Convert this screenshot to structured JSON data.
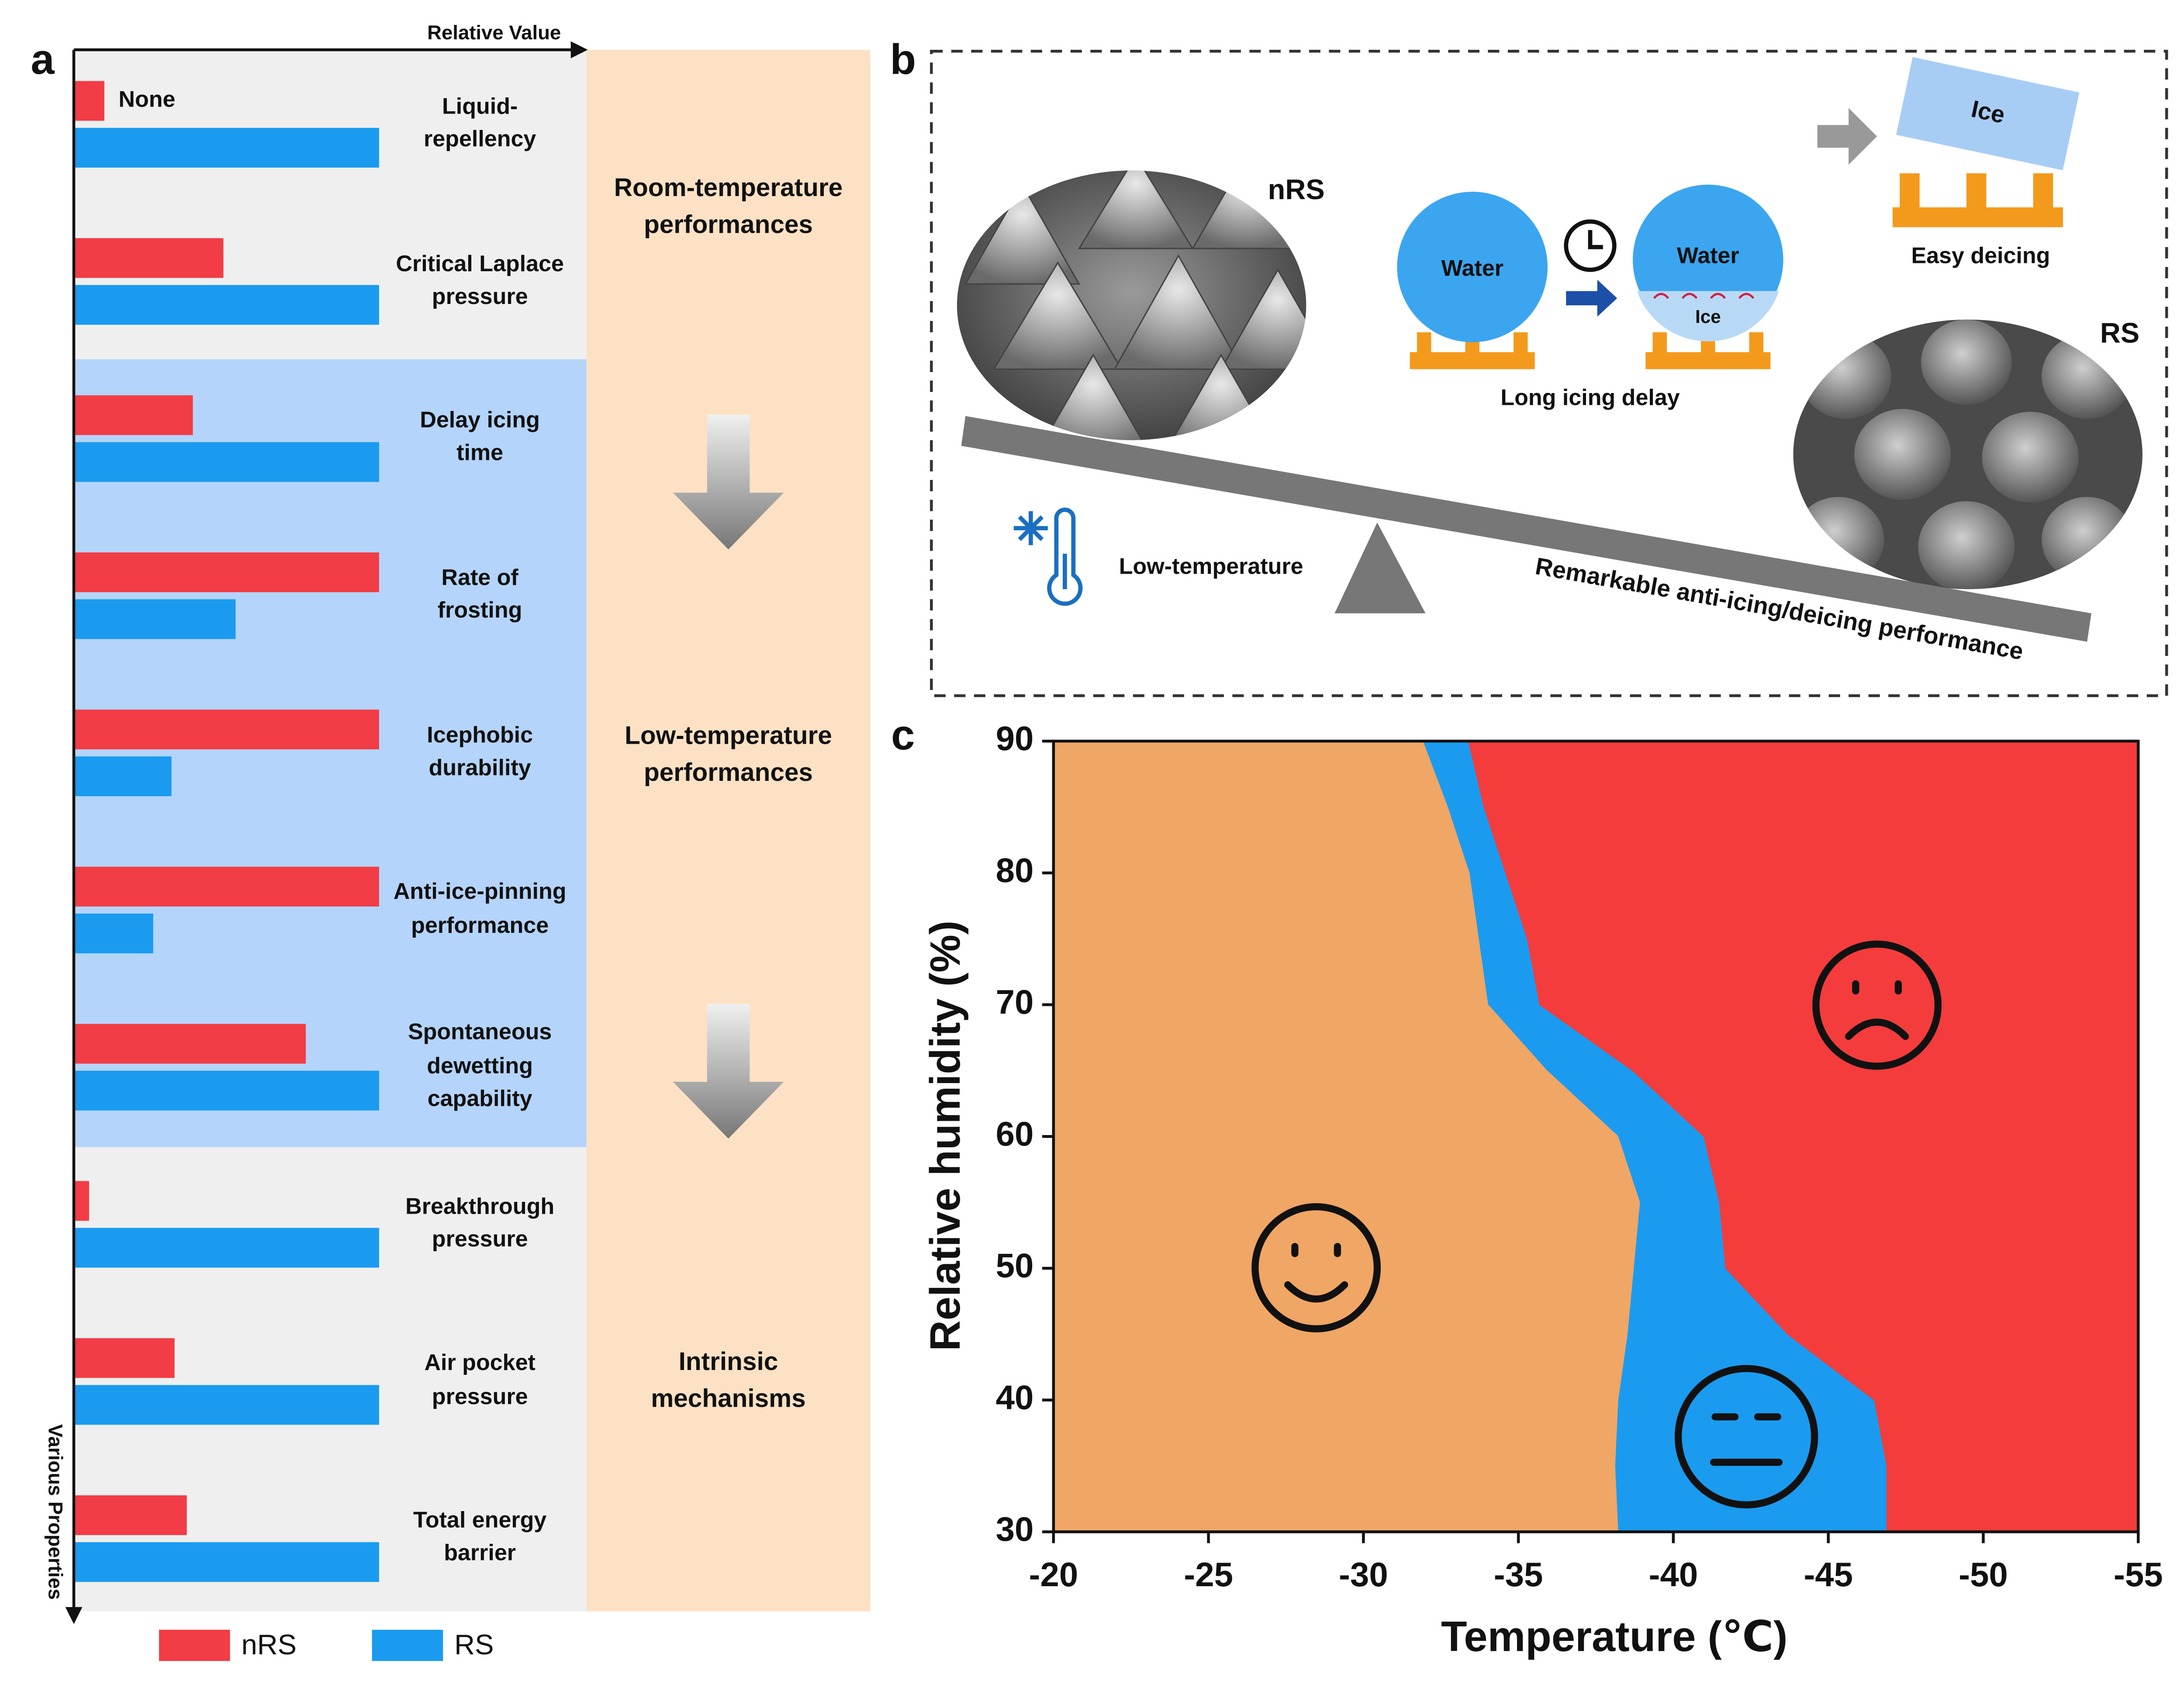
{
  "chart_data": [
    {
      "type": "hbar",
      "label": "a",
      "xlabel": "Relative Value",
      "ylabel": "Various Properties",
      "categories": [
        "Liquid-\nrepellency",
        "Critical Laplace\npressure",
        "Delay icing\ntime",
        "Rate of\nfrosting",
        "Icephobic\ndurability",
        "Anti-ice-pinning\nperformance",
        "Spontaneous\ndewetting\ncapability",
        "Breakthrough\npressure",
        "Air pocket\npressure",
        "Total energy\nbarrier"
      ],
      "series": [
        {
          "name": "nRS",
          "color": "#f23c46",
          "values": [
            10,
            49,
            39,
            100,
            100,
            100,
            76,
            5,
            33,
            37
          ],
          "value_labels": [
            "None",
            null,
            null,
            null,
            null,
            null,
            null,
            null,
            null,
            null
          ]
        },
        {
          "name": "RS",
          "color": "#1a9bf0",
          "values": [
            100,
            100,
            100,
            53,
            32,
            26,
            100,
            100,
            100,
            100
          ]
        }
      ],
      "xlim": [
        0,
        100
      ],
      "sections": [
        "Room-temperature\nperformances",
        "Low-temperature\nperformances",
        "Intrinsic\nmechanisms"
      ]
    },
    {
      "type": "region",
      "label": "c",
      "xlabel": "Temperature (℃)",
      "ylabel": "Relative humidity (%)",
      "xlim": [
        -20,
        -55
      ],
      "xticks": [
        -20,
        -25,
        -30,
        -35,
        -40,
        -45,
        -50,
        -55
      ],
      "ylim": [
        30,
        90
      ],
      "yticks": [
        30,
        40,
        50,
        60,
        70,
        80,
        90
      ],
      "fill_colors": [
        "#f0a664",
        "#1a9bf0",
        "#f43c3c"
      ],
      "y": [
        30,
        35,
        40,
        45,
        50,
        55,
        60,
        65,
        70,
        75,
        80,
        85,
        90
      ],
      "boundaries": [
        {
          "x": [
            -38.2,
            -38.1,
            -38.2,
            -38.5,
            -38.7,
            -38.9,
            -38.2,
            -35.9,
            -34.0,
            -33.7,
            -33.4,
            -32.7,
            -31.9
          ]
        },
        {
          "x": [
            -46.9,
            -46.9,
            -46.5,
            -43.7,
            -41.7,
            -41.5,
            -41.0,
            -38.7,
            -35.7,
            -35.3,
            -34.6,
            -33.9,
            -33.4
          ]
        }
      ]
    }
  ],
  "diagram": {
    "label": "b",
    "nRS": "nRS",
    "RS": "RS",
    "water": [
      "Water",
      "Water"
    ],
    "ice": [
      "Ice",
      "Ice"
    ],
    "long_icing_delay": "Long icing delay",
    "easy_deicing": "Easy deicing",
    "low_temperature": "Low-temperature",
    "performance": "Remarkable anti-icing/deicing performance"
  }
}
